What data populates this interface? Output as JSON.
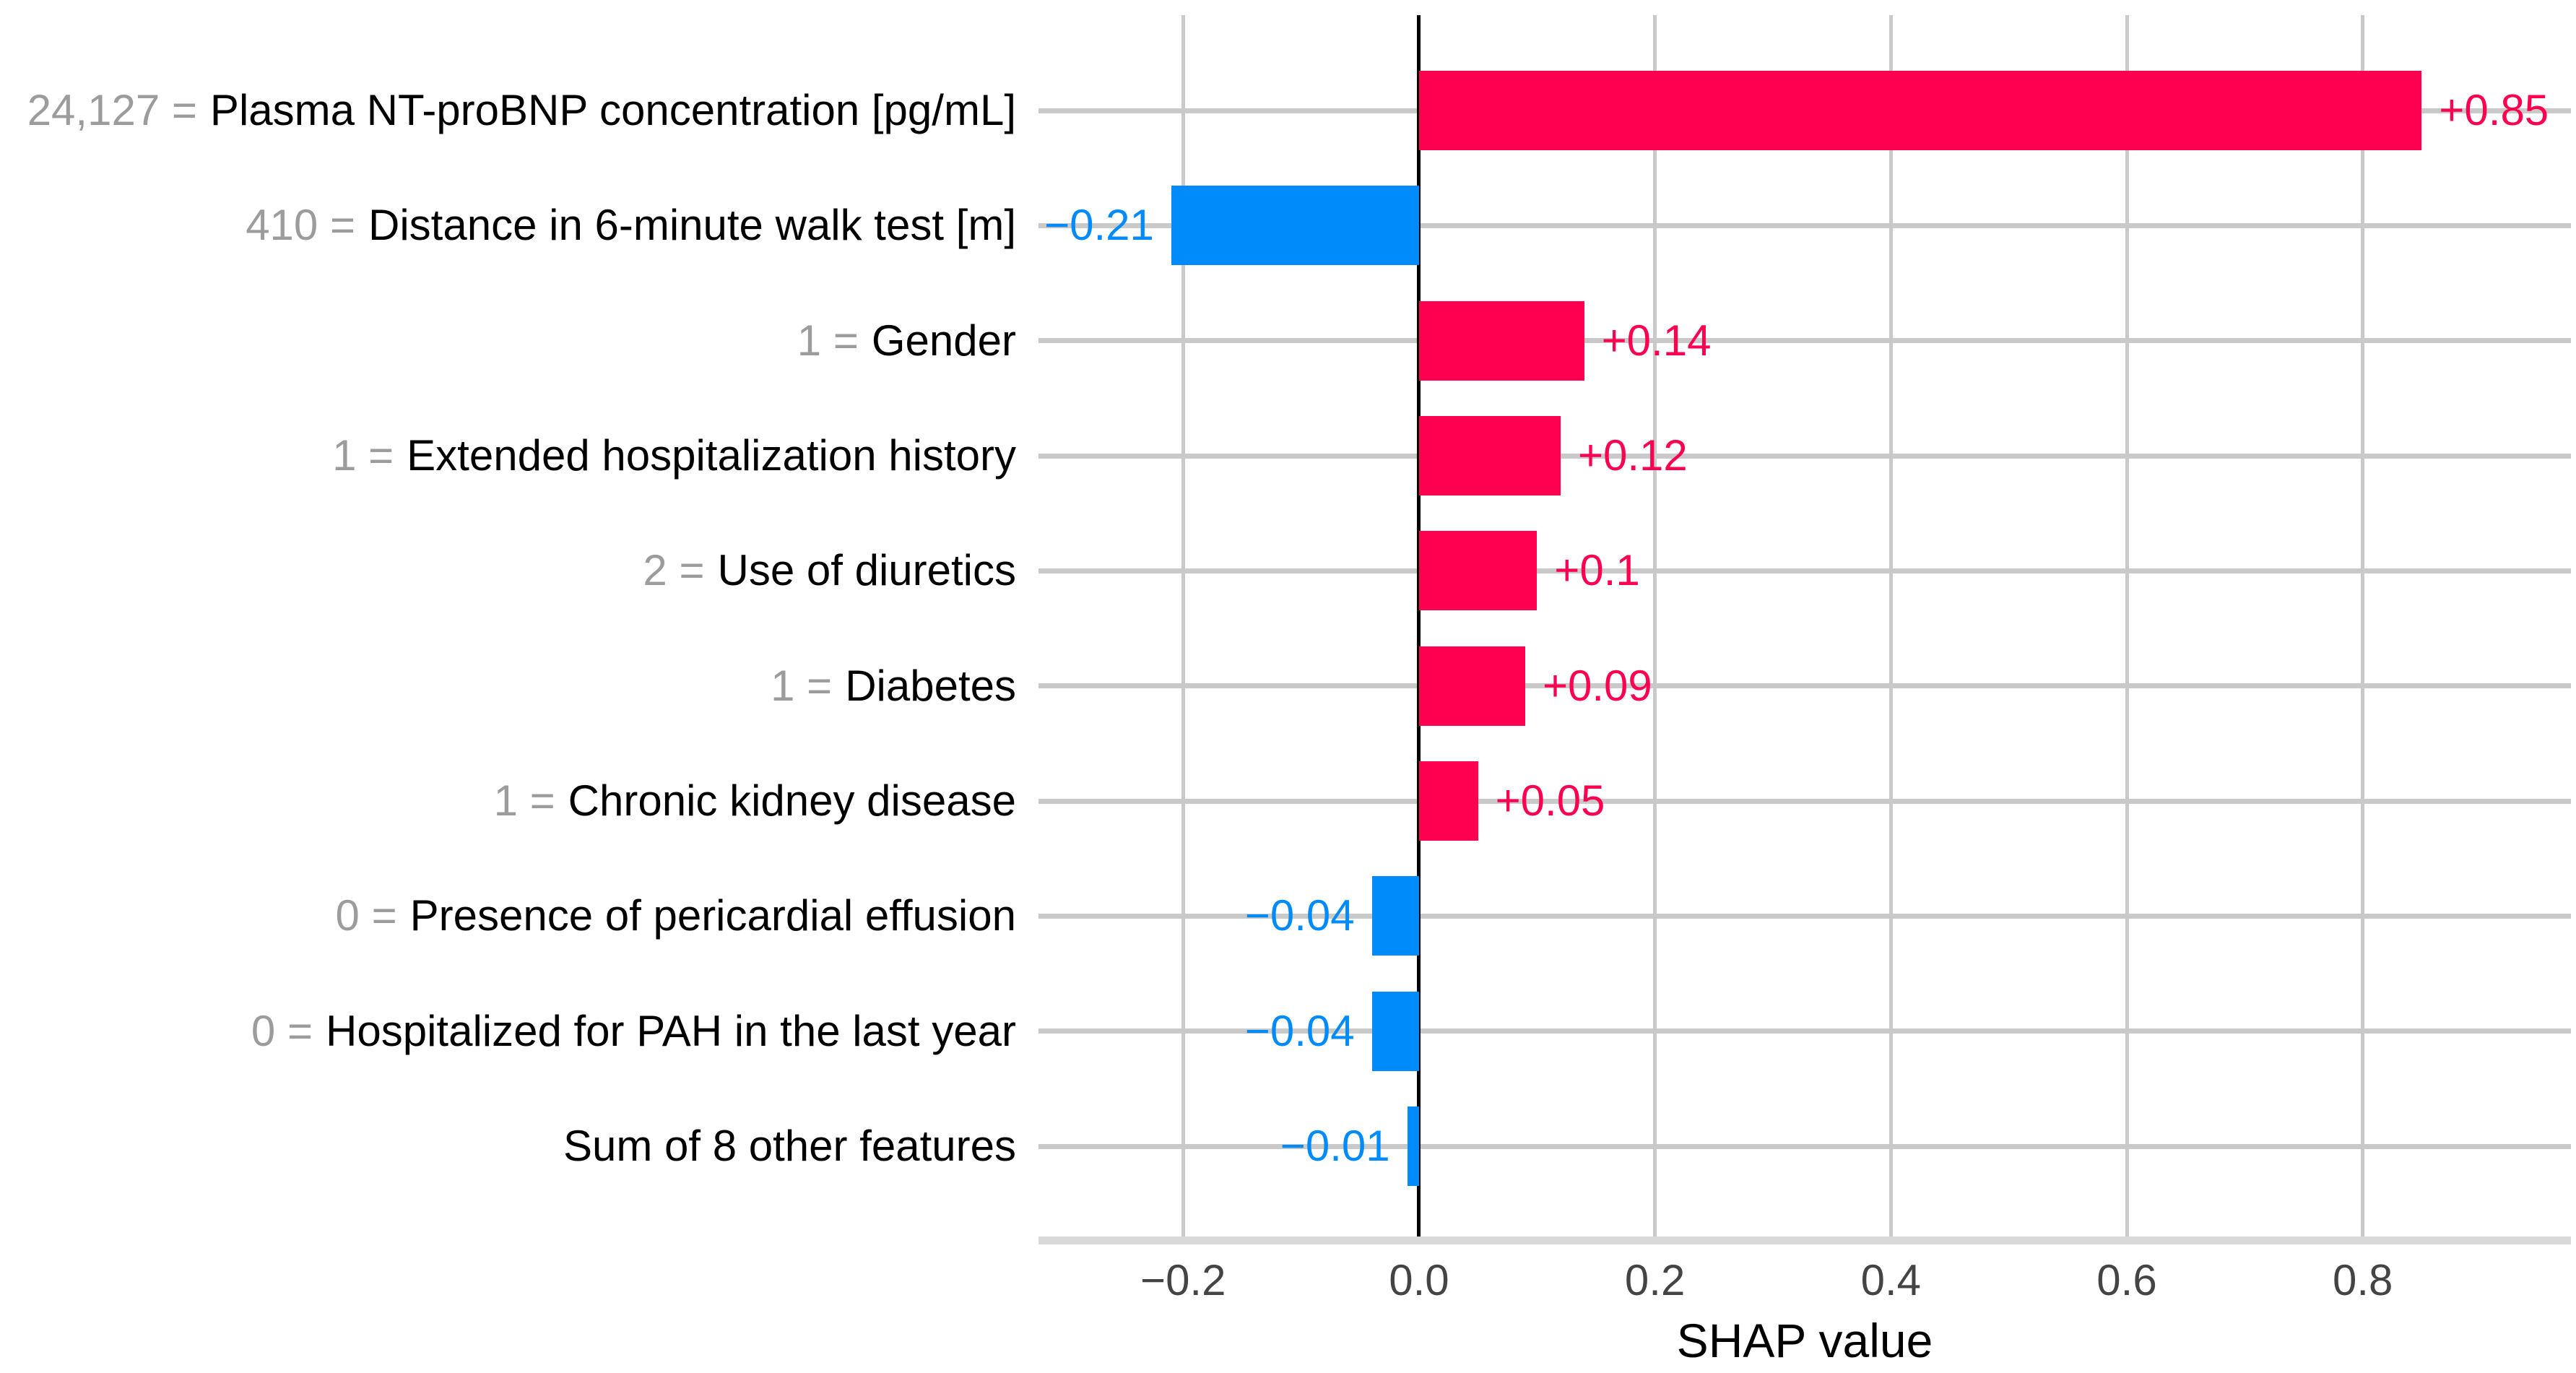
{
  "figure": {
    "background": "#ffffff"
  },
  "chart_data": {
    "type": "bar",
    "orientation": "horizontal",
    "title": "",
    "xlabel": "SHAP value",
    "ylabel": "",
    "xlim": [
      -0.3226,
      0.9765
    ],
    "x_ticks": [
      -0.2,
      0.0,
      0.2,
      0.4,
      0.6,
      0.8
    ],
    "x_tick_labels": [
      "−0.2",
      "0.0",
      "0.2",
      "0.4",
      "0.6",
      "0.8"
    ],
    "grid": "both",
    "zero_reference_line": 0,
    "legend": "none",
    "rows": [
      {
        "value_prefix": "24,127 =",
        "feature": "Plasma NT-proBNP concentration [pg/mL]",
        "shap": 0.85,
        "value_label": "+0.85",
        "sign": "positive"
      },
      {
        "value_prefix": "410 =",
        "feature": "Distance in 6-minute walk test [m]",
        "shap": -0.21,
        "value_label": "−0.21",
        "sign": "negative"
      },
      {
        "value_prefix": "1 =",
        "feature": "Gender",
        "shap": 0.14,
        "value_label": "+0.14",
        "sign": "positive"
      },
      {
        "value_prefix": "1 =",
        "feature": "Extended hospitalization history",
        "shap": 0.12,
        "value_label": "+0.12",
        "sign": "positive"
      },
      {
        "value_prefix": "2 =",
        "feature": "Use of diuretics",
        "shap": 0.1,
        "value_label": "+0.1",
        "sign": "positive"
      },
      {
        "value_prefix": "1 =",
        "feature": "Diabetes",
        "shap": 0.09,
        "value_label": "+0.09",
        "sign": "positive"
      },
      {
        "value_prefix": "1 =",
        "feature": "Chronic kidney disease",
        "shap": 0.05,
        "value_label": "+0.05",
        "sign": "positive"
      },
      {
        "value_prefix": "0 =",
        "feature": "Presence of pericardial effusion",
        "shap": -0.04,
        "value_label": "−0.04",
        "sign": "negative"
      },
      {
        "value_prefix": "0 =",
        "feature": "Hospitalized for PAH in the last year",
        "shap": -0.04,
        "value_label": "−0.04",
        "sign": "negative"
      },
      {
        "value_prefix": "",
        "feature": "Sum of 8 other features",
        "shap": -0.01,
        "value_label": "−0.01",
        "sign": "negative"
      }
    ]
  },
  "colors": {
    "positive_bar": "#ff0051",
    "negative_bar": "#008bfb",
    "positive_text": "#ff0051",
    "negative_text": "#008bfb",
    "feature_value_text": "#9c9c9c",
    "feature_name_text": "#000000",
    "tick_text": "#444444",
    "gridline": "#c9c9c9",
    "axis_line": "#d9d9d9",
    "zero_line": "#000000"
  }
}
